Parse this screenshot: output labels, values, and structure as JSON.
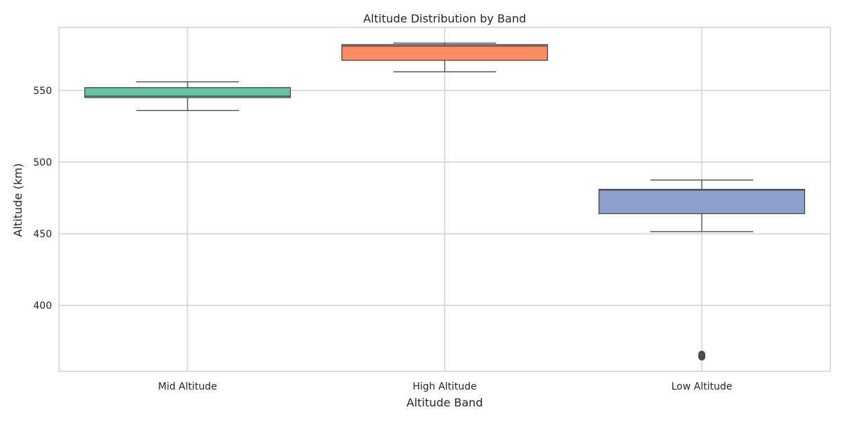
{
  "chart_data": {
    "type": "box",
    "title": "Altitude Distribution by Band",
    "xlabel": "Altitude Band",
    "ylabel": "Altitude (km)",
    "ylim": [
      354,
      594
    ],
    "yticks": [
      400,
      450,
      500,
      550
    ],
    "grid": true,
    "categories": [
      "Mid Altitude",
      "High Altitude",
      "Low Altitude"
    ],
    "boxes": [
      {
        "category": "Mid Altitude",
        "color": "#66c2a5",
        "whisker_low": 536,
        "q1": 545,
        "median": 546,
        "q3": 552,
        "whisker_high": 556,
        "outliers": []
      },
      {
        "category": "High Altitude",
        "color": "#fc8d62",
        "whisker_low": 563,
        "q1": 571,
        "median": 581,
        "q3": 582,
        "whisker_high": 583,
        "outliers": []
      },
      {
        "category": "Low Altitude",
        "color": "#8da0cb",
        "whisker_low": 451.5,
        "q1": 464,
        "median": 480.5,
        "q3": 481,
        "whisker_high": 487.5,
        "outliers": [
          364,
          365,
          366,
          364.5
        ]
      }
    ]
  }
}
